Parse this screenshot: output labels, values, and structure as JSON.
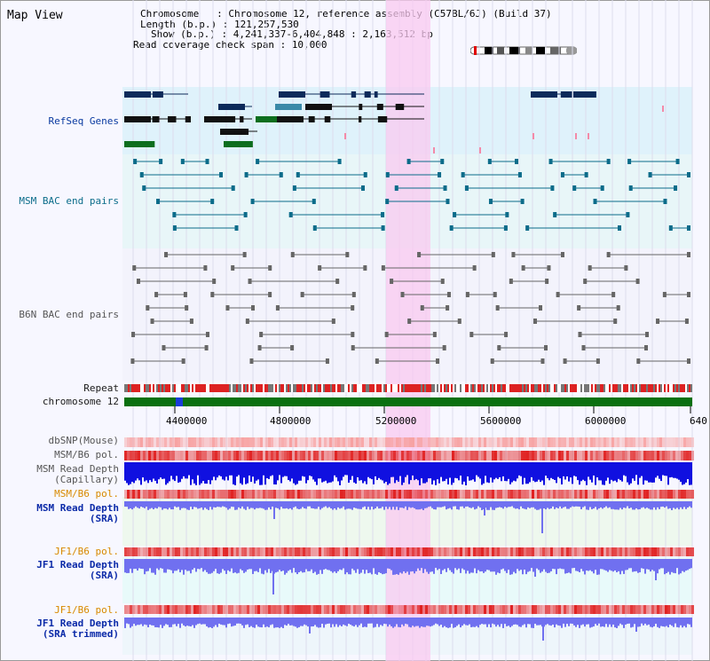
{
  "view": {
    "title": "Map View"
  },
  "info": {
    "chromosome_line": "Chromosome   : Chromosome 12, reference assembly (C57BL/6J) (Build 37)",
    "length_line": "Length (b.p.) : 121,257,530",
    "show_line": "Show (b.p.) : 4,241,337-6,404,848 : 2,163,512 bp",
    "coverage_line": "Read coverage check span : 10,000"
  },
  "tracks": {
    "refseq": "RefSeq Genes",
    "msm_bac": "MSM BAC end pairs",
    "b6n_bac": "B6N BAC end pairs",
    "repeat": "Repeat",
    "chromosome": "chromosome 12",
    "dbsnp": "dbSNP(Mouse)",
    "msm_b6_pol_1": "MSM/B6 pol.",
    "msm_read_depth_cap_1": "MSM Read Depth",
    "msm_read_depth_cap_2": "(Capillary)",
    "msm_b6_pol_2": "MSM/B6 pol.",
    "msm_read_depth_sra_1": "MSM Read Depth",
    "msm_read_depth_sra_2": "(SRA)",
    "jf1_b6_pol_1": "JF1/B6 pol.",
    "jf1_read_depth_sra_1": "JF1 Read Depth",
    "jf1_read_depth_sra_2": "(SRA)",
    "jf1_b6_pol_2": "JF1/B6 pol.",
    "jf1_read_depth_trim_1": "JF1 Read Depth",
    "jf1_read_depth_trim_2": "(SRA trimmed)"
  },
  "axis": {
    "ticks": [
      "4400000",
      "4800000",
      "5200000",
      "5600000",
      "6000000",
      "640"
    ]
  },
  "colors": {
    "refseq_bg": "#dff2fb",
    "gene_navy": "#0c2a5a",
    "gene_green": "#0d6e1e",
    "msm_bac_bg": "#e8f6f8",
    "msm_bac": "#0b6c8a",
    "b6n_bac": "#666666",
    "highlight": "#f9c9f0",
    "chrom_green": "#0a7010",
    "snp_pink": "#f7a0a0",
    "pol_red": "#e02020",
    "depth_blue": "#1010e0",
    "sra_blue": "#7070f0"
  }
}
